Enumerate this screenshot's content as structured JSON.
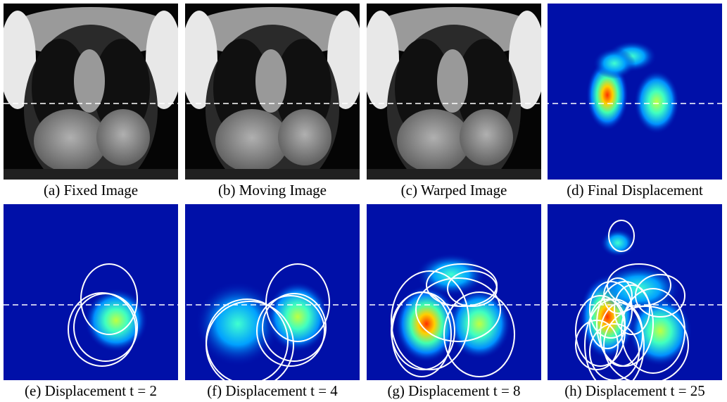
{
  "figure": {
    "captions": [
      "(a) Fixed Image",
      "(b) Moving Image",
      "(c) Warped Image",
      "(d) Final Displacement",
      "(e) Displacement t = 2",
      "(f) Displacement t = 4",
      "(g) Displacement t = 8",
      "(h) Displacement t = 25"
    ]
  }
}
